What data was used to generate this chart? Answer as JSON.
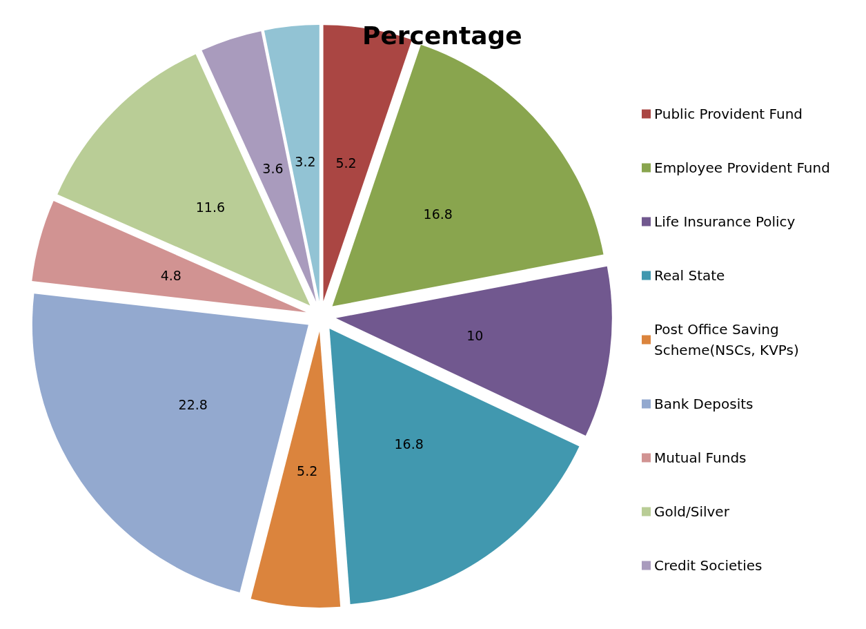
{
  "chart_data": {
    "type": "pie",
    "title": "Percentage",
    "categories": [
      null,
      "Public Provident Fund",
      "Employee Provident Fund",
      "Life Insurance Policy",
      "Real State",
      "Post Office Saving Scheme(NSCs, KVPs)",
      "Bank Deposits",
      "Mutual Funds",
      "Gold/Silver",
      "Credit Societies",
      null
    ],
    "values": [
      0,
      5.2,
      16.8,
      10,
      16.8,
      5.2,
      22.8,
      4.8,
      11.6,
      3.6,
      3.2
    ],
    "value_labels": [
      null,
      "5.2",
      "16.8",
      "10",
      "16.8",
      "5.2",
      "22.8",
      "4.8",
      "11.6",
      "3.6",
      "3.2"
    ],
    "colors": [
      "#4f81bd",
      "#aa4643",
      "#89a54e",
      "#71588f",
      "#4198af",
      "#db843d",
      "#93a9cf",
      "#d19392",
      "#b9cd96",
      "#a99bbd",
      "#92c3d4"
    ],
    "legend": "right"
  }
}
